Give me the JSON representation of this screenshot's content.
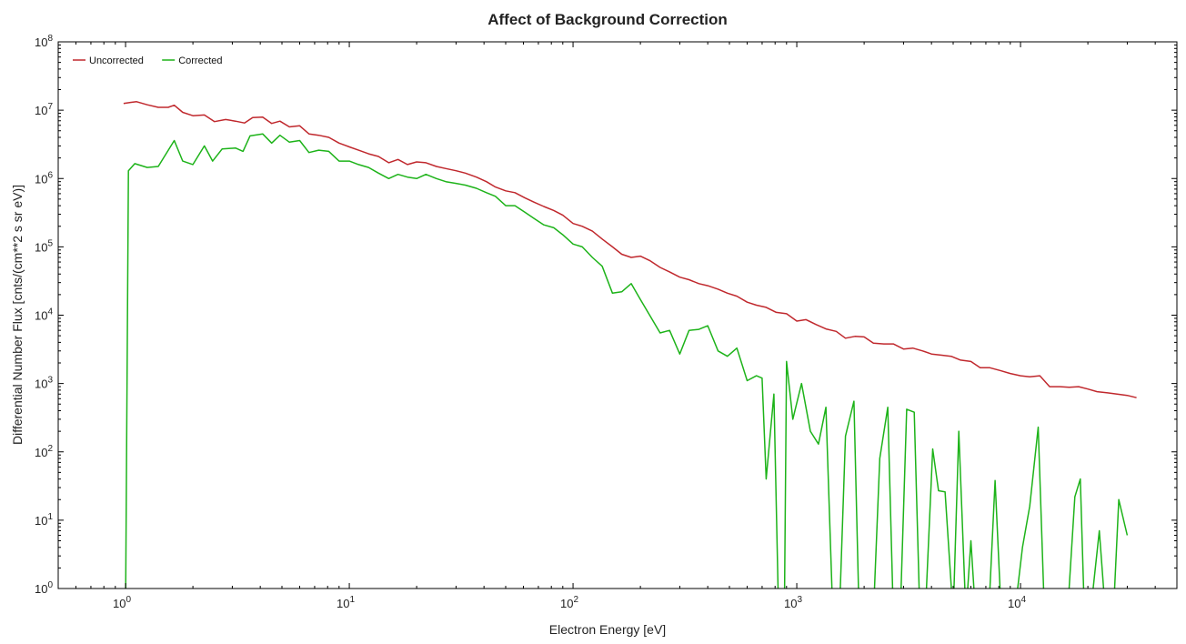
{
  "chart_data": {
    "type": "line",
    "title": "Affect of Background Correction",
    "xlabel": "Electron Energy [eV]",
    "ylabel": "Differential Number Flux [cnts/(cm**2 s sr eV)]",
    "x_scale": "log",
    "y_scale": "log",
    "xlim": [
      0.5,
      50000
    ],
    "ylim": [
      1,
      100000000
    ],
    "x_ticks": [
      {
        "value": 1,
        "base": "10",
        "exp": "0"
      },
      {
        "value": 10,
        "base": "10",
        "exp": "1"
      },
      {
        "value": 100,
        "base": "10",
        "exp": "2"
      },
      {
        "value": 1000,
        "base": "10",
        "exp": "3"
      },
      {
        "value": 10000,
        "base": "10",
        "exp": "4"
      }
    ],
    "y_ticks": [
      {
        "value": 1,
        "base": "10",
        "exp": "0"
      },
      {
        "value": 10,
        "base": "10",
        "exp": "1"
      },
      {
        "value": 100,
        "base": "10",
        "exp": "2"
      },
      {
        "value": 1000,
        "base": "10",
        "exp": "3"
      },
      {
        "value": 10000,
        "base": "10",
        "exp": "4"
      },
      {
        "value": 100000,
        "base": "10",
        "exp": "5"
      },
      {
        "value": 1000000,
        "base": "10",
        "exp": "6"
      },
      {
        "value": 10000000,
        "base": "10",
        "exp": "7"
      },
      {
        "value": 100000000,
        "base": "10",
        "exp": "8"
      }
    ],
    "grid": false,
    "legend_position": "top-left",
    "series": [
      {
        "name": "Uncorrected",
        "color": "#c0282d",
        "points": [
          [
            0.98,
            12500000
          ],
          [
            1.05,
            13000000
          ],
          [
            1.12,
            13300000
          ],
          [
            1.25,
            12000000
          ],
          [
            1.4,
            11000000
          ],
          [
            1.55,
            11000000
          ],
          [
            1.65,
            11800000
          ],
          [
            1.8,
            9300000
          ],
          [
            2.0,
            8300000
          ],
          [
            2.25,
            8500000
          ],
          [
            2.5,
            6800000
          ],
          [
            2.8,
            7300000
          ],
          [
            3.1,
            6900000
          ],
          [
            3.4,
            6500000
          ],
          [
            3.7,
            7800000
          ],
          [
            4.1,
            7900000
          ],
          [
            4.5,
            6400000
          ],
          [
            4.9,
            6900000
          ],
          [
            5.4,
            5700000
          ],
          [
            6.0,
            5900000
          ],
          [
            6.6,
            4500000
          ],
          [
            7.3,
            4300000
          ],
          [
            8.1,
            4000000
          ],
          [
            9.0,
            3300000
          ],
          [
            10.0,
            2900000
          ],
          [
            11.0,
            2600000
          ],
          [
            12.2,
            2300000
          ],
          [
            13.5,
            2100000
          ],
          [
            15.0,
            1700000
          ],
          [
            16.5,
            1900000
          ],
          [
            18.2,
            1600000
          ],
          [
            20.0,
            1750000
          ],
          [
            22.0,
            1700000
          ],
          [
            24.5,
            1500000
          ],
          [
            27.0,
            1400000
          ],
          [
            30.0,
            1300000
          ],
          [
            33.0,
            1200000
          ],
          [
            37.0,
            1050000
          ],
          [
            41.0,
            900000
          ],
          [
            45.0,
            750000
          ],
          [
            50.0,
            660000
          ],
          [
            55.0,
            620000
          ],
          [
            61.0,
            520000
          ],
          [
            67.0,
            450000
          ],
          [
            74.0,
            390000
          ],
          [
            82.0,
            340000
          ],
          [
            90.0,
            290000
          ],
          [
            100.0,
            220000
          ],
          [
            110.0,
            200000
          ],
          [
            122.0,
            170000
          ],
          [
            135.0,
            130000
          ],
          [
            150.0,
            100000
          ],
          [
            165.0,
            78000
          ],
          [
            182.0,
            70000
          ],
          [
            200.0,
            73000
          ],
          [
            220.0,
            63000
          ],
          [
            245.0,
            50000
          ],
          [
            270.0,
            43000
          ],
          [
            300.0,
            36000
          ],
          [
            330.0,
            33000
          ],
          [
            365.0,
            29000
          ],
          [
            400.0,
            27000
          ],
          [
            445.0,
            24000
          ],
          [
            490.0,
            21000
          ],
          [
            540.0,
            19000
          ],
          [
            600.0,
            15500
          ],
          [
            660.0,
            14000
          ],
          [
            730.0,
            13000
          ],
          [
            810.0,
            11000
          ],
          [
            900.0,
            10500
          ],
          [
            1000.0,
            8200
          ],
          [
            1100.0,
            8600
          ],
          [
            1220.0,
            7300
          ],
          [
            1350.0,
            6300
          ],
          [
            1500.0,
            5800
          ],
          [
            1650.0,
            4600
          ],
          [
            1820.0,
            4900
          ],
          [
            2000.0,
            4800
          ],
          [
            2200.0,
            3900
          ],
          [
            2450.0,
            3800
          ],
          [
            2700.0,
            3800
          ],
          [
            3000.0,
            3200
          ],
          [
            3300.0,
            3300
          ],
          [
            3650.0,
            3000
          ],
          [
            4000.0,
            2700
          ],
          [
            4450.0,
            2600
          ],
          [
            4900.0,
            2500
          ],
          [
            5400.0,
            2200
          ],
          [
            6000.0,
            2100
          ],
          [
            6600.0,
            1700
          ],
          [
            7300.0,
            1700
          ],
          [
            8100.0,
            1550
          ],
          [
            9000.0,
            1400
          ],
          [
            10000.0,
            1300
          ],
          [
            11000.0,
            1250
          ],
          [
            12200.0,
            1300
          ],
          [
            13500.0,
            900
          ],
          [
            15000.0,
            900
          ],
          [
            16500.0,
            880
          ],
          [
            18200.0,
            900
          ],
          [
            20000.0,
            830
          ],
          [
            22000.0,
            760
          ],
          [
            24500.0,
            730
          ],
          [
            27000.0,
            700
          ],
          [
            30000.0,
            670
          ],
          [
            33000.0,
            620
          ]
        ]
      },
      {
        "name": "Corrected",
        "color": "#1db319",
        "points": [
          [
            1.0,
            0.6
          ],
          [
            1.03,
            1300000
          ],
          [
            1.1,
            1650000
          ],
          [
            1.25,
            1450000
          ],
          [
            1.4,
            1500000
          ],
          [
            1.65,
            3600000
          ],
          [
            1.8,
            1800000
          ],
          [
            2.0,
            1600000
          ],
          [
            2.25,
            3000000
          ],
          [
            2.45,
            1800000
          ],
          [
            2.7,
            2700000
          ],
          [
            3.1,
            2800000
          ],
          [
            3.35,
            2500000
          ],
          [
            3.6,
            4200000
          ],
          [
            4.1,
            4500000
          ],
          [
            4.5,
            3300000
          ],
          [
            4.9,
            4300000
          ],
          [
            5.4,
            3400000
          ],
          [
            6.0,
            3600000
          ],
          [
            6.6,
            2400000
          ],
          [
            7.3,
            2600000
          ],
          [
            8.1,
            2500000
          ],
          [
            9.0,
            1800000
          ],
          [
            10.0,
            1800000
          ],
          [
            11.0,
            1600000
          ],
          [
            12.2,
            1450000
          ],
          [
            13.5,
            1200000
          ],
          [
            15.0,
            1000000
          ],
          [
            16.5,
            1150000
          ],
          [
            18.2,
            1050000
          ],
          [
            20.0,
            1000000
          ],
          [
            22.0,
            1150000
          ],
          [
            24.5,
            1000000
          ],
          [
            27.0,
            900000
          ],
          [
            30.0,
            850000
          ],
          [
            33.0,
            800000
          ],
          [
            37.0,
            720000
          ],
          [
            41.0,
            620000
          ],
          [
            45.0,
            550000
          ],
          [
            50.0,
            400000
          ],
          [
            55.0,
            400000
          ],
          [
            61.0,
            320000
          ],
          [
            67.0,
            260000
          ],
          [
            74.0,
            210000
          ],
          [
            82.0,
            190000
          ],
          [
            90.0,
            150000
          ],
          [
            100.0,
            110000
          ],
          [
            110.0,
            100000
          ],
          [
            122.0,
            70000
          ],
          [
            135.0,
            52000
          ],
          [
            150.0,
            21000
          ],
          [
            165.0,
            22000
          ],
          [
            182.0,
            29000
          ],
          [
            200.0,
            17000
          ],
          [
            220.0,
            10000
          ],
          [
            245.0,
            5500
          ],
          [
            270.0,
            6000
          ],
          [
            300.0,
            2700
          ],
          [
            330.0,
            6000
          ],
          [
            365.0,
            6200
          ],
          [
            400.0,
            7000
          ],
          [
            445.0,
            3000
          ],
          [
            490.0,
            2500
          ],
          [
            540.0,
            3300
          ],
          [
            600.0,
            1100
          ],
          [
            660.0,
            1300
          ],
          [
            700.0,
            1200
          ],
          [
            730.0,
            40
          ],
          [
            790.0,
            700
          ],
          [
            830.0,
            0.4
          ],
          [
            880.0,
            0.4
          ],
          [
            900.0,
            2100
          ],
          [
            960.0,
            300
          ],
          [
            1050.0,
            1000
          ],
          [
            1150.0,
            200
          ],
          [
            1250.0,
            130
          ],
          [
            1350.0,
            450
          ],
          [
            1450.0,
            0.4
          ],
          [
            1550.0,
            0.4
          ],
          [
            1650.0,
            170
          ],
          [
            1800.0,
            550
          ],
          [
            1900.0,
            0.4
          ],
          [
            2050.0,
            0.4
          ],
          [
            2200.0,
            0.4
          ],
          [
            2350.0,
            80
          ],
          [
            2550.0,
            450
          ],
          [
            2700.0,
            0.4
          ],
          [
            2900.0,
            0.4
          ],
          [
            3100.0,
            420
          ],
          [
            3350.0,
            380
          ],
          [
            3550.0,
            0.4
          ],
          [
            3750.0,
            0.4
          ],
          [
            4050.0,
            110
          ],
          [
            4300.0,
            27
          ],
          [
            4600.0,
            26
          ],
          [
            5000.0,
            0.4
          ],
          [
            5300.0,
            200
          ],
          [
            5700.0,
            0.4
          ],
          [
            6000.0,
            5
          ],
          [
            6300.0,
            0.4
          ],
          [
            6700.0,
            0.4
          ],
          [
            7200.0,
            0.4
          ],
          [
            7700.0,
            38
          ],
          [
            8200.0,
            0.4
          ],
          [
            8800.0,
            0.4
          ],
          [
            9400.0,
            0.4
          ],
          [
            10200.0,
            4
          ],
          [
            11000.0,
            16
          ],
          [
            12000.0,
            230
          ],
          [
            12800.0,
            0.4
          ],
          [
            13800.0,
            0.4
          ],
          [
            15000.0,
            0.4
          ],
          [
            16200.0,
            0.4
          ],
          [
            17500.0,
            22
          ],
          [
            18500.0,
            40
          ],
          [
            19300.0,
            0.4
          ],
          [
            20500.0,
            0.4
          ],
          [
            22500.0,
            7
          ],
          [
            24000.0,
            0.4
          ],
          [
            26000.0,
            0.4
          ],
          [
            27500.0,
            20
          ],
          [
            30000.0,
            6
          ]
        ]
      }
    ]
  }
}
